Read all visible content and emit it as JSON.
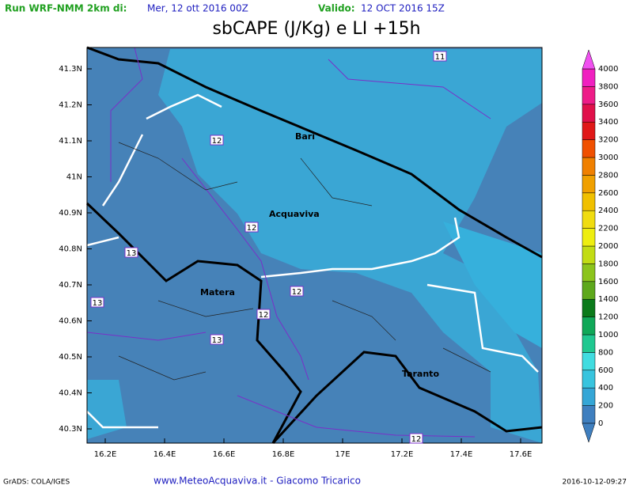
{
  "header": {
    "run_label": "Run WRF-NMM 2km di:",
    "run_date": "Mer, 12 ott 2016 00Z",
    "valid_label": "Valido:",
    "valid_date": "12 OCT 2016 15Z"
  },
  "title": "sbCAPE (J/Kg) e LI +15h",
  "lat_labels": [
    "41.3N",
    "41.2N",
    "41.1N",
    "41N",
    "40.9N",
    "40.8N",
    "40.7N",
    "40.6N",
    "40.5N",
    "40.4N",
    "40.3N"
  ],
  "lon_labels": [
    "16.2E",
    "16.4E",
    "16.6E",
    "16.8E",
    "17E",
    "17.2E",
    "17.4E",
    "17.6E"
  ],
  "places": [
    "Bari",
    "Acquaviva",
    "Matera",
    "Taranto"
  ],
  "contour_labels": [
    "11",
    "12",
    "12",
    "13",
    "13",
    "13",
    "12",
    "12",
    "12"
  ],
  "colorbar": {
    "levels": [
      0,
      200,
      400,
      600,
      800,
      1000,
      1200,
      1400,
      1600,
      1800,
      2000,
      2200,
      2400,
      2600,
      2800,
      3000,
      3200,
      3400,
      3600,
      3800,
      4000
    ],
    "colors": [
      "#3f7fbf",
      "#35a6d6",
      "#38c4de",
      "#40dce0",
      "#20c890",
      "#10a858",
      "#0b7a1a",
      "#5ea81c",
      "#8cc41c",
      "#c2dc14",
      "#eeee10",
      "#f0dc10",
      "#f0c000",
      "#f0a000",
      "#f08000",
      "#f05000",
      "#e01818",
      "#e0104a",
      "#ee1c88",
      "#f020c0"
    ],
    "below_color": "#3f7fbf",
    "above_color": "#f050f0"
  },
  "footer": {
    "left": "GrADS: COLA/IGES",
    "center": "www.MeteoAcquaviva.it  -  Giacomo Tricarico",
    "right": "2016-10-12-09:27"
  }
}
